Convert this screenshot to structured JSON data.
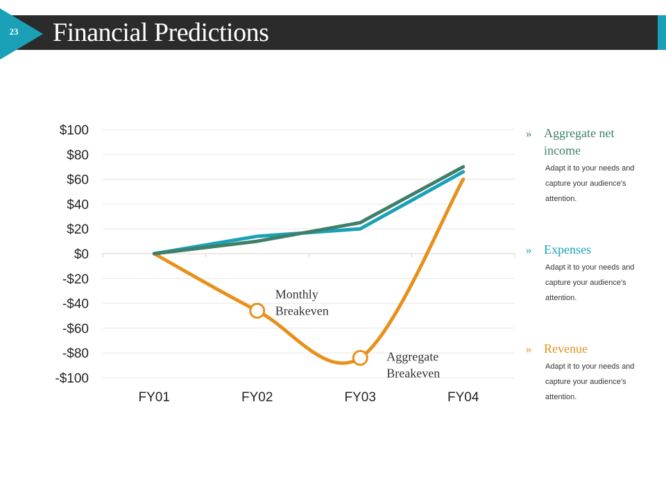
{
  "slide": {
    "number": "23",
    "title": "Financial Predictions"
  },
  "colors": {
    "title_bar": "#2b2b2b",
    "accent": "#1aa1b8",
    "aggregate_net_income": "#3f7f6a",
    "expenses": "#1aa1b8",
    "revenue": "#e8901c"
  },
  "legend": [
    {
      "chevron": "»",
      "name": "Aggregate net income",
      "desc": "Adapt it to your needs and capture your audience's attention.",
      "color_key": "aggregate_net_income"
    },
    {
      "chevron": "»",
      "name": "Expenses",
      "desc": "Adapt it to your needs and capture your audience's attention.",
      "color_key": "expenses"
    },
    {
      "chevron": "»",
      "name": "Revenue",
      "desc": "Adapt it to your needs and capture your audience's attention.",
      "color_key": "revenue"
    }
  ],
  "chart_data": {
    "type": "line",
    "categories": [
      "FY01",
      "FY02",
      "FY03",
      "FY04"
    ],
    "ylim": [
      -100,
      100
    ],
    "y_ticks": [
      100,
      80,
      60,
      40,
      20,
      0,
      -20,
      -40,
      -60,
      -80,
      -100
    ],
    "y_tick_labels": [
      "$100",
      "$80",
      "$60",
      "$40",
      "$20",
      "$0",
      "-$20",
      "-$40",
      "-$60",
      "-$80",
      "-$100"
    ],
    "grid": true,
    "legend_placement": "right",
    "series": [
      {
        "name": "Aggregate net income",
        "values": [
          0,
          10,
          25,
          70
        ],
        "color": "#3f7f6a",
        "smooth": false
      },
      {
        "name": "Expenses",
        "values": [
          0,
          14,
          20,
          66
        ],
        "color": "#1aa1b8",
        "smooth": false
      },
      {
        "name": "Revenue",
        "values": [
          0,
          -46,
          -84,
          60
        ],
        "color": "#e8901c",
        "smooth": true
      }
    ],
    "annotations": [
      {
        "text_lines": [
          "Monthly",
          "Breakeven"
        ],
        "category": "FY02",
        "value": -46
      },
      {
        "text_lines": [
          "Aggregate",
          "Breakeven"
        ],
        "category": "FY03",
        "value": -84
      }
    ]
  }
}
